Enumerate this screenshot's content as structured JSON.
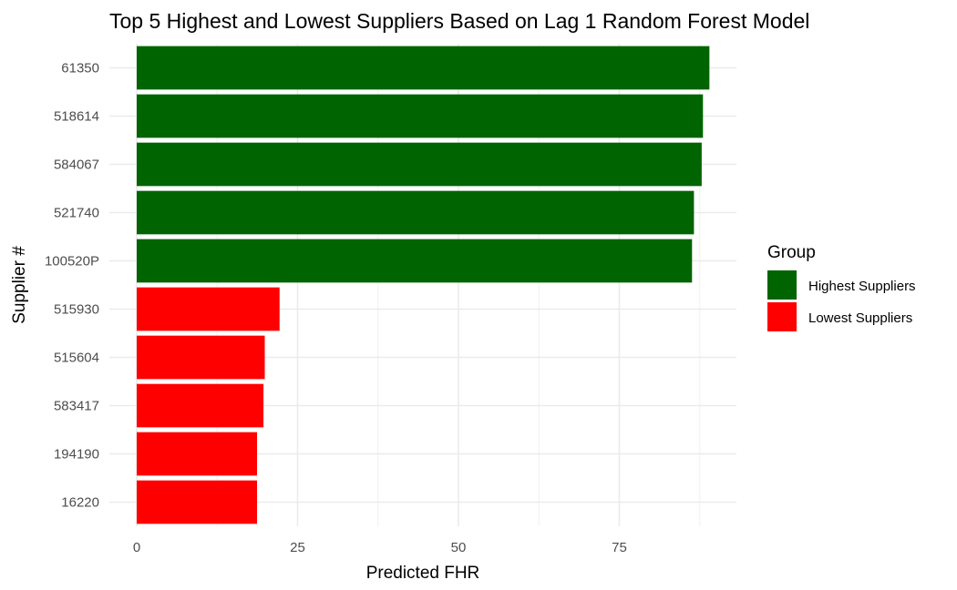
{
  "chart_data": {
    "type": "bar",
    "orientation": "horizontal",
    "title": "Top 5 Highest and Lowest Suppliers Based on Lag 1 Random Forest Model",
    "xlabel": "Predicted FHR",
    "ylabel": "Supplier #",
    "xlim": [
      0,
      93
    ],
    "xticks": [
      0,
      25,
      50,
      75
    ],
    "grid": true,
    "legend": {
      "title": "Group",
      "placement": "right",
      "entries": [
        {
          "label": "Highest Suppliers",
          "color": "#006400"
        },
        {
          "label": "Lowest Suppliers",
          "color": "#ff0000"
        }
      ]
    },
    "categories": [
      "61350",
      "518614",
      "584067",
      "521740",
      "100520P",
      "515930",
      "515604",
      "583417",
      "194190",
      "16220"
    ],
    "values": [
      89,
      88,
      87.8,
      86.6,
      86.3,
      22.2,
      19.9,
      19.7,
      18.7,
      18.7
    ],
    "groups": [
      "Highest Suppliers",
      "Highest Suppliers",
      "Highest Suppliers",
      "Highest Suppliers",
      "Highest Suppliers",
      "Lowest Suppliers",
      "Lowest Suppliers",
      "Lowest Suppliers",
      "Lowest Suppliers",
      "Lowest Suppliers"
    ]
  }
}
